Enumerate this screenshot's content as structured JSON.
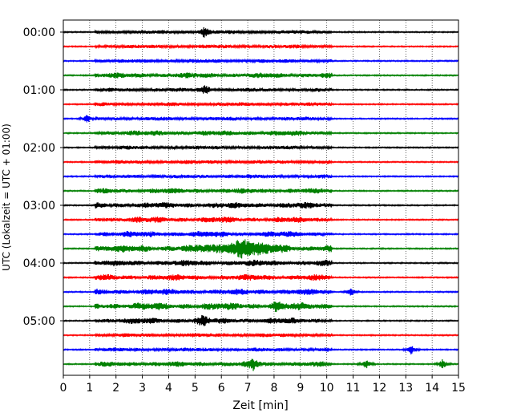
{
  "chart_data": {
    "type": "line",
    "title": "",
    "xlabel": "Zeit  [min]",
    "ylabel": "UTC (Lokalzeit = UTC + 01:00)",
    "xlim": [
      0,
      15
    ],
    "x_ticks": [
      "0",
      "1",
      "2",
      "3",
      "4",
      "5",
      "6",
      "7",
      "8",
      "9",
      "10",
      "11",
      "12",
      "13",
      "14",
      "15"
    ],
    "y_tick_labels": [
      "00:00",
      "01:00",
      "02:00",
      "03:00",
      "04:00",
      "05:00"
    ],
    "grid": "vertical dotted at each minute",
    "trace_interval_min": 15,
    "trace_count": 24,
    "trace_colors": [
      "#000000",
      "#ff0000",
      "#0000ff",
      "#008000"
    ],
    "noisy_segment_min": [
      1.2,
      10.2
    ],
    "events": [
      {
        "trace": 0,
        "minute": 5.35
      },
      {
        "trace": 4,
        "minute": 5.4
      },
      {
        "trace": 6,
        "minute": 0.9
      },
      {
        "trace": 15,
        "minute": 6.8
      },
      {
        "trace": 19,
        "minute": 8.1
      },
      {
        "trace": 18,
        "minute": 10.9
      },
      {
        "trace": 20,
        "minute": 5.3
      },
      {
        "trace": 22,
        "minute": 13.2
      },
      {
        "trace": 23,
        "minute": 14.4
      },
      {
        "trace": 23,
        "minute": 11.5
      },
      {
        "trace": 23,
        "minute": 7.2
      }
    ]
  }
}
